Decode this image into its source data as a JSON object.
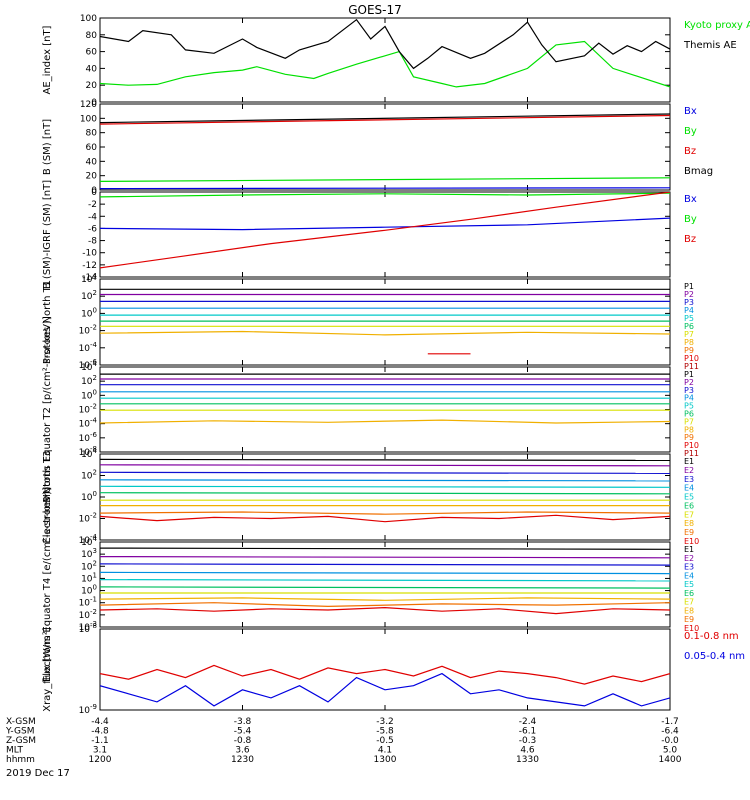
{
  "title": "GOES-17",
  "date_label": "2019 Dec 17",
  "colors": {
    "black": "#000000",
    "red": "#e00000",
    "green": "#00e000",
    "blue": "#0000e0",
    "p1": "#000000",
    "p2": "#8000a0",
    "p3": "#1010d0",
    "p4": "#0090e0",
    "p5": "#00c8c8",
    "p6": "#00c060",
    "p7": "#d8e000",
    "p8": "#f0b000",
    "p9": "#f07000",
    "p10": "#e00000",
    "p11": "#b00000"
  },
  "chart_data": [
    {
      "type": "line",
      "id": "ae",
      "ylabel": "AE_index [nT]",
      "ylim": [
        0,
        100
      ],
      "yticks": [
        "100",
        "80",
        "60",
        "40",
        "20",
        "0"
      ],
      "legend": [
        "Kyoto proxy AE",
        "Themis AE"
      ],
      "series": [
        {
          "name": "Kyoto proxy AE",
          "color": "green",
          "x": [
            12.0,
            12.1,
            12.2,
            12.3,
            12.4,
            12.5,
            12.55,
            12.65,
            12.75,
            12.8,
            12.9,
            13.0,
            13.05,
            13.1,
            13.2,
            13.25,
            13.35,
            13.5,
            13.6,
            13.7,
            13.8,
            14.0
          ],
          "y": [
            22,
            20,
            21,
            30,
            35,
            38,
            42,
            33,
            28,
            34,
            45,
            55,
            60,
            30,
            22,
            18,
            22,
            40,
            68,
            72,
            40,
            18
          ]
        },
        {
          "name": "Themis AE",
          "color": "black",
          "x": [
            12.0,
            12.1,
            12.15,
            12.25,
            12.3,
            12.4,
            12.5,
            12.55,
            12.65,
            12.7,
            12.8,
            12.9,
            12.95,
            13.0,
            13.05,
            13.1,
            13.15,
            13.2,
            13.3,
            13.35,
            13.45,
            13.5,
            13.55,
            13.6,
            13.7,
            13.75,
            13.8,
            13.85,
            13.9,
            13.95,
            14.0
          ],
          "y": [
            78,
            72,
            85,
            80,
            62,
            58,
            75,
            65,
            52,
            62,
            72,
            98,
            75,
            90,
            60,
            40,
            52,
            66,
            52,
            58,
            80,
            95,
            68,
            48,
            55,
            70,
            57,
            67,
            60,
            72,
            63
          ]
        }
      ]
    },
    {
      "type": "line",
      "id": "bsm",
      "ylabel": "B (SM) [nT]",
      "ylim": [
        0,
        120
      ],
      "yticks": [
        "120",
        "100",
        "80",
        "60",
        "40",
        "20",
        "0"
      ],
      "legend": [
        "Bx",
        "By",
        "Bz",
        "Bmag"
      ],
      "series": [
        {
          "name": "Bx",
          "color": "blue",
          "x": [
            12.0,
            14.0
          ],
          "y": [
            2,
            3
          ]
        },
        {
          "name": "By",
          "color": "green",
          "x": [
            12.0,
            14.0
          ],
          "y": [
            12,
            17
          ]
        },
        {
          "name": "Bz",
          "color": "red",
          "x": [
            12.0,
            14.0
          ],
          "y": [
            92,
            104
          ]
        },
        {
          "name": "Bmag",
          "color": "black",
          "x": [
            12.0,
            14.0
          ],
          "y": [
            94,
            106
          ]
        }
      ]
    },
    {
      "type": "line",
      "id": "bigrf",
      "ylabel": "B (SM)-IGRF (SM) [nT]",
      "ylim": [
        -14,
        0
      ],
      "yticks": [
        "0",
        "-2",
        "-4",
        "-6",
        "-8",
        "-10",
        "-12",
        "-14"
      ],
      "legend": [
        "Bx",
        "By",
        "Bz"
      ],
      "series": [
        {
          "name": "Bx",
          "color": "blue",
          "x": [
            12.0,
            12.5,
            13.0,
            13.5,
            14.0
          ],
          "y": [
            -6.0,
            -6.2,
            -5.8,
            -5.4,
            -4.3
          ]
        },
        {
          "name": "By",
          "color": "green",
          "x": [
            12.0,
            12.5,
            13.0,
            13.5,
            14.0
          ],
          "y": [
            -0.8,
            -0.5,
            -0.3,
            -0.5,
            -0.2
          ]
        },
        {
          "name": "Bz",
          "color": "red",
          "x": [
            12.0,
            12.3,
            12.6,
            13.0,
            13.3,
            13.6,
            14.0
          ],
          "y": [
            -12.5,
            -10.5,
            -8.5,
            -6.3,
            -4.5,
            -2.5,
            0.0
          ]
        }
      ]
    },
    {
      "type": "line",
      "id": "prot1",
      "log": true,
      "ylabel": "Protons North T1",
      "ylim": [
        -6,
        4
      ],
      "yticks": [
        "10^4",
        "10^2",
        "10^0",
        "10^-2",
        "10^-4",
        "10^-6"
      ],
      "legend": [
        "P1",
        "P2",
        "P3",
        "P4",
        "P5",
        "P6",
        "P7",
        "P8",
        "P9",
        "P10",
        "P11"
      ],
      "series": [
        {
          "name": "P1",
          "color": "p1",
          "x": [
            12.0,
            14.0
          ],
          "y": [
            2.8,
            2.8
          ]
        },
        {
          "name": "P2",
          "color": "p2",
          "x": [
            12.0,
            14.0
          ],
          "y": [
            2.2,
            2.2
          ]
        },
        {
          "name": "P3",
          "color": "p3",
          "x": [
            12.0,
            14.0
          ],
          "y": [
            1.4,
            1.4
          ]
        },
        {
          "name": "P4",
          "color": "p4",
          "x": [
            12.0,
            14.0
          ],
          "y": [
            0.6,
            0.6
          ]
        },
        {
          "name": "P5",
          "color": "p5",
          "x": [
            12.0,
            14.0
          ],
          "y": [
            -0.2,
            -0.2
          ]
        },
        {
          "name": "P6",
          "color": "p6",
          "x": [
            12.0,
            14.0
          ],
          "y": [
            -0.9,
            -0.9
          ]
        },
        {
          "name": "P7",
          "color": "p7",
          "x": [
            12.0,
            14.0
          ],
          "y": [
            -1.5,
            -1.5
          ]
        },
        {
          "name": "P8",
          "color": "p8",
          "x": [
            12.0,
            12.5,
            13.0,
            13.5,
            14.0
          ],
          "y": [
            -2.3,
            -2.1,
            -2.5,
            -2.2,
            -2.4
          ]
        },
        {
          "name": "P10",
          "color": "p10",
          "x": [
            13.15,
            13.3
          ],
          "y": [
            -4.7,
            -4.7
          ]
        }
      ]
    },
    {
      "type": "line",
      "id": "prot2",
      "log": true,
      "ylabel": "Protons Equator T2 [p/(cm²-s-sr-keV)]",
      "ylim": [
        -8,
        4
      ],
      "yticks": [
        "10^4",
        "10^2",
        "10^0",
        "10^-2",
        "10^-4",
        "10^-6",
        "10^-8"
      ],
      "legend": [
        "P1",
        "P2",
        "P3",
        "P4",
        "P5",
        "P6",
        "P7",
        "P8",
        "P9",
        "P10",
        "P11"
      ],
      "series": [
        {
          "name": "P1",
          "color": "p1",
          "x": [
            12.0,
            14.0
          ],
          "y": [
            3.0,
            3.0
          ]
        },
        {
          "name": "P2",
          "color": "p2",
          "x": [
            12.0,
            14.0
          ],
          "y": [
            2.3,
            2.3
          ]
        },
        {
          "name": "P3",
          "color": "p3",
          "x": [
            12.0,
            14.0
          ],
          "y": [
            1.5,
            1.5
          ]
        },
        {
          "name": "P4",
          "color": "p4",
          "x": [
            12.0,
            14.0
          ],
          "y": [
            0.5,
            0.5
          ]
        },
        {
          "name": "P5",
          "color": "p5",
          "x": [
            12.0,
            14.0
          ],
          "y": [
            -0.4,
            -0.4
          ]
        },
        {
          "name": "P6",
          "color": "p6",
          "x": [
            12.0,
            14.0
          ],
          "y": [
            -1.2,
            -1.2
          ]
        },
        {
          "name": "P7",
          "color": "p7",
          "x": [
            12.0,
            14.0
          ],
          "y": [
            -2.1,
            -2.1
          ]
        },
        {
          "name": "P8",
          "color": "p8",
          "x": [
            12.0,
            12.4,
            12.8,
            13.2,
            13.6,
            14.0
          ],
          "y": [
            -3.9,
            -3.6,
            -3.8,
            -3.5,
            -3.9,
            -3.7
          ]
        }
      ]
    },
    {
      "type": "line",
      "id": "elec3",
      "log": true,
      "ylabel": "Electrons North T3",
      "ylim": [
        -4,
        4
      ],
      "yticks": [
        "10^4",
        "10^2",
        "10^0",
        "10^-2",
        "10^-4"
      ],
      "legend": [
        "E1",
        "E2",
        "E3",
        "E4",
        "E5",
        "E6",
        "E7",
        "E8",
        "E9",
        "E10"
      ],
      "series": [
        {
          "name": "E1",
          "color": "p1",
          "x": [
            12.0,
            14.0
          ],
          "y": [
            3.5,
            3.4
          ]
        },
        {
          "name": "E2",
          "color": "p2",
          "x": [
            12.0,
            14.0
          ],
          "y": [
            3.0,
            2.9
          ]
        },
        {
          "name": "E3",
          "color": "p3",
          "x": [
            12.0,
            14.0
          ],
          "y": [
            2.3,
            2.2
          ]
        },
        {
          "name": "E4",
          "color": "p4",
          "x": [
            12.0,
            14.0
          ],
          "y": [
            1.6,
            1.5
          ]
        },
        {
          "name": "E5",
          "color": "p5",
          "x": [
            12.0,
            14.0
          ],
          "y": [
            1.0,
            0.9
          ]
        },
        {
          "name": "E6",
          "color": "p6",
          "x": [
            12.0,
            14.0
          ],
          "y": [
            0.4,
            0.3
          ]
        },
        {
          "name": "E7",
          "color": "p7",
          "x": [
            12.0,
            14.0
          ],
          "y": [
            -0.3,
            -0.3
          ]
        },
        {
          "name": "E8",
          "color": "p8",
          "x": [
            12.0,
            14.0
          ],
          "y": [
            -0.8,
            -0.8
          ]
        },
        {
          "name": "E9",
          "color": "p9",
          "x": [
            12.0,
            12.5,
            13.0,
            13.5,
            14.0
          ],
          "y": [
            -1.5,
            -1.4,
            -1.6,
            -1.4,
            -1.5
          ]
        },
        {
          "name": "E10",
          "color": "p10",
          "x": [
            12.0,
            12.2,
            12.4,
            12.6,
            12.8,
            13.0,
            13.2,
            13.4,
            13.6,
            13.8,
            14.0
          ],
          "y": [
            -1.8,
            -2.2,
            -1.9,
            -2.0,
            -1.8,
            -2.3,
            -1.9,
            -2.0,
            -1.7,
            -2.1,
            -1.8
          ]
        }
      ]
    },
    {
      "type": "line",
      "id": "elec4",
      "log": true,
      "ylabel": "Electrons Equator T4 [e/(cm²-s-sr-keV)]",
      "ylim": [
        -3,
        4
      ],
      "yticks": [
        "10^4",
        "10^3",
        "10^2",
        "10^1",
        "10^0",
        "10^-1",
        "10^-2",
        "10^-3"
      ],
      "legend": [
        "E1",
        "E2",
        "E3",
        "E4",
        "E5",
        "E6",
        "E7",
        "E8",
        "E9",
        "E10"
      ],
      "series": [
        {
          "name": "E1",
          "color": "p1",
          "x": [
            12.0,
            14.0
          ],
          "y": [
            3.5,
            3.4
          ]
        },
        {
          "name": "E2",
          "color": "p2",
          "x": [
            12.0,
            14.0
          ],
          "y": [
            2.8,
            2.7
          ]
        },
        {
          "name": "E3",
          "color": "p3",
          "x": [
            12.0,
            14.0
          ],
          "y": [
            2.2,
            2.1
          ]
        },
        {
          "name": "E4",
          "color": "p4",
          "x": [
            12.0,
            14.0
          ],
          "y": [
            1.5,
            1.4
          ]
        },
        {
          "name": "E5",
          "color": "p5",
          "x": [
            12.0,
            14.0
          ],
          "y": [
            0.9,
            0.8
          ]
        },
        {
          "name": "E6",
          "color": "p6",
          "x": [
            12.0,
            14.0
          ],
          "y": [
            0.3,
            0.2
          ]
        },
        {
          "name": "E7",
          "color": "p7",
          "x": [
            12.0,
            14.0
          ],
          "y": [
            -0.2,
            -0.2
          ]
        },
        {
          "name": "E8",
          "color": "p8",
          "x": [
            12.0,
            12.5,
            13.0,
            13.5,
            14.0
          ],
          "y": [
            -0.7,
            -0.6,
            -0.8,
            -0.6,
            -0.7
          ]
        },
        {
          "name": "E9",
          "color": "p9",
          "x": [
            12.0,
            12.4,
            12.8,
            13.2,
            13.6,
            14.0
          ],
          "y": [
            -1.2,
            -1.0,
            -1.3,
            -1.1,
            -1.2,
            -1.0
          ]
        },
        {
          "name": "E10",
          "color": "p10",
          "x": [
            12.0,
            12.2,
            12.4,
            12.6,
            12.8,
            13.0,
            13.2,
            13.4,
            13.6,
            13.8,
            14.0
          ],
          "y": [
            -1.6,
            -1.5,
            -1.7,
            -1.5,
            -1.6,
            -1.4,
            -1.7,
            -1.5,
            -1.9,
            -1.5,
            -1.6
          ]
        }
      ]
    },
    {
      "type": "line",
      "id": "xray",
      "log": true,
      "ylabel": "Xray_flux [W/m²]",
      "ylim": [
        -9,
        -8
      ],
      "yticks": [
        "10^-8",
        "10^-9"
      ],
      "legend": [
        "0.1-0.8 nm",
        "0.05-0.4 nm"
      ],
      "series": [
        {
          "name": "0.1-0.8 nm",
          "color": "red",
          "x": [
            12.0,
            12.1,
            12.2,
            12.3,
            12.4,
            12.5,
            12.6,
            12.7,
            12.8,
            12.9,
            13.0,
            13.1,
            13.2,
            13.3,
            13.4,
            13.5,
            13.6,
            13.7,
            13.8,
            13.9,
            14.0
          ],
          "y": [
            -8.55,
            -8.62,
            -8.5,
            -8.6,
            -8.45,
            -8.58,
            -8.5,
            -8.62,
            -8.48,
            -8.55,
            -8.5,
            -8.58,
            -8.46,
            -8.6,
            -8.52,
            -8.55,
            -8.6,
            -8.68,
            -8.58,
            -8.65,
            -8.55
          ]
        },
        {
          "name": "0.05-0.4 nm",
          "color": "blue",
          "x": [
            12.0,
            12.1,
            12.2,
            12.3,
            12.4,
            12.5,
            12.6,
            12.7,
            12.8,
            12.9,
            13.0,
            13.1,
            13.2,
            13.3,
            13.4,
            13.5,
            13.6,
            13.7,
            13.8,
            13.9,
            14.0
          ],
          "y": [
            -8.7,
            -8.8,
            -8.9,
            -8.7,
            -8.95,
            -8.75,
            -8.85,
            -8.7,
            -8.9,
            -8.6,
            -8.75,
            -8.7,
            -8.55,
            -8.8,
            -8.75,
            -8.85,
            -8.9,
            -8.95,
            -8.8,
            -8.95,
            -8.85
          ]
        }
      ]
    }
  ],
  "xaxis": {
    "xlim": [
      12.0,
      14.0
    ],
    "ticks": [
      {
        "x": 12.0,
        "hhmm": "1200",
        "xgsm": "-4.4",
        "ygsm": "-4.8",
        "zgsm": "-1.1",
        "mlt": "3.1"
      },
      {
        "x": 12.5,
        "hhmm": "1230",
        "xgsm": "-3.8",
        "ygsm": "-5.4",
        "zgsm": "-0.8",
        "mlt": "3.6"
      },
      {
        "x": 13.0,
        "hhmm": "1300",
        "xgsm": "-3.2",
        "ygsm": "-5.8",
        "zgsm": "-0.5",
        "mlt": "4.1"
      },
      {
        "x": 13.5,
        "hhmm": "1330",
        "xgsm": "-2.4",
        "ygsm": "-6.1",
        "zgsm": "-0.3",
        "mlt": "4.6"
      },
      {
        "x": 14.0,
        "hhmm": "1400",
        "xgsm": "-1.7",
        "ygsm": "-6.4",
        "zgsm": "-0.0",
        "mlt": "5.0"
      }
    ],
    "row_labels": [
      "X-GSM",
      "Y-GSM",
      "Z-GSM",
      "MLT",
      "hhmm"
    ]
  }
}
